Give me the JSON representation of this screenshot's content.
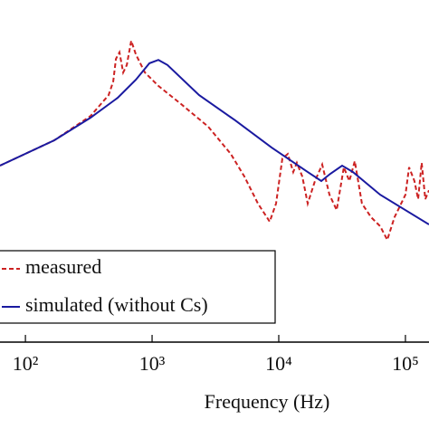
{
  "chart_data": {
    "type": "line",
    "xlabel": "Frequency (Hz)",
    "log_x": true,
    "xlim": [
      63,
      153500
    ],
    "ylim": [
      0,
      100
    ],
    "xticks": [
      {
        "value": 100,
        "label": "10²"
      },
      {
        "value": 1000,
        "label": "10³"
      },
      {
        "value": 10000,
        "label": "10⁴"
      },
      {
        "value": 100000,
        "label": "10⁵"
      }
    ],
    "legend": "lower left",
    "series": [
      {
        "name": "measured",
        "color": "#cc2222",
        "dashed": true,
        "x": [
          63,
          169,
          327,
          454,
          493,
          518,
          553,
          591,
          631,
          685,
          744,
          877,
          1122,
          1693,
          2773,
          4182,
          5354,
          6848,
          8486,
          9520,
          10680,
          11780,
          13010,
          13890,
          15340,
          16930,
          19310,
          22030,
          25120,
          28660,
          32660,
          36060,
          39810,
          45390,
          53540,
          63100,
          71940,
          82060,
          100000,
          106800,
          117800,
          125900,
          134400,
          143600,
          153500
        ],
        "values": [
          51.6,
          59,
          66.1,
          72.2,
          76.2,
          82.8,
          84.7,
          78.8,
          81,
          88.1,
          84.1,
          78.8,
          74.9,
          69.6,
          63,
          55,
          48.4,
          40.5,
          35.2,
          40.5,
          53.7,
          55,
          49.7,
          52.4,
          48.4,
          40.5,
          47.1,
          51.9,
          43.1,
          38.6,
          51.1,
          47.1,
          52.9,
          40.5,
          36.5,
          33.9,
          29.9,
          36.5,
          43.1,
          51.1,
          47.1,
          41.8,
          52.4,
          41.8,
          44.4
        ]
      },
      {
        "name": "simulated (without Cs)",
        "color": "#1a1aa0",
        "dashed": false,
        "x": [
          63,
          169,
          327,
          535,
          744,
          952,
          1122,
          1322,
          2352,
          4540,
          8770,
          16930,
          21660,
          25530,
          31620,
          38540,
          63100,
          153500
        ],
        "values": [
          51.6,
          59,
          65.6,
          71.4,
          76.7,
          81.5,
          82.5,
          81,
          72.2,
          64.8,
          56.9,
          49.7,
          47.1,
          49.2,
          51.6,
          49.7,
          43.1,
          34.4
        ]
      }
    ]
  }
}
